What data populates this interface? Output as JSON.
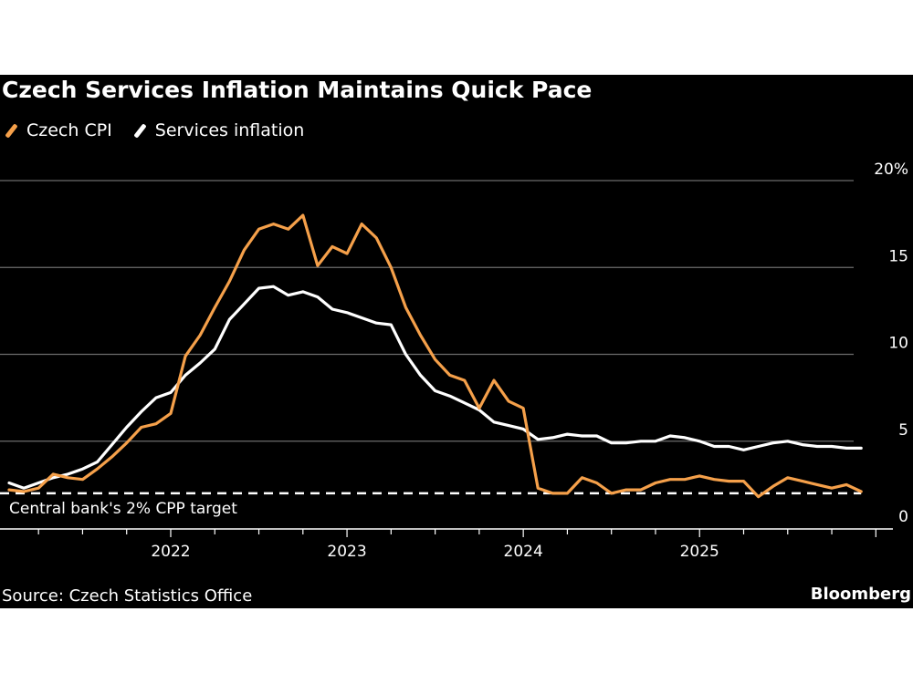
{
  "chart_data": {
    "type": "line",
    "title": "Czech Services Inflation Maintains Quick Pace",
    "xlabel": "",
    "ylabel": "",
    "y_unit": "%",
    "ylim": [
      0,
      20
    ],
    "yticks": [
      0,
      5,
      10,
      15,
      20
    ],
    "ytick_labels": [
      "0",
      "5",
      "10",
      "15",
      "20%"
    ],
    "xrange": [
      "2021-01",
      "2025-11"
    ],
    "xtick_labels": [
      "2022",
      "2023",
      "2024",
      "2025"
    ],
    "grid": true,
    "legend_position": "top-left",
    "x": [
      "2021-01",
      "2021-02",
      "2021-03",
      "2021-04",
      "2021-05",
      "2021-06",
      "2021-07",
      "2021-08",
      "2021-09",
      "2021-10",
      "2021-11",
      "2021-12",
      "2022-01",
      "2022-02",
      "2022-03",
      "2022-04",
      "2022-05",
      "2022-06",
      "2022-07",
      "2022-08",
      "2022-09",
      "2022-10",
      "2022-11",
      "2022-12",
      "2023-01",
      "2023-02",
      "2023-03",
      "2023-04",
      "2023-05",
      "2023-06",
      "2023-07",
      "2023-08",
      "2023-09",
      "2023-10",
      "2023-11",
      "2023-12",
      "2024-01",
      "2024-02",
      "2024-03",
      "2024-04",
      "2024-05",
      "2024-06",
      "2024-07",
      "2024-08",
      "2024-09",
      "2024-10",
      "2024-11",
      "2024-12",
      "2025-01",
      "2025-02",
      "2025-03",
      "2025-04",
      "2025-05",
      "2025-06",
      "2025-07",
      "2025-08",
      "2025-09",
      "2025-10",
      "2025-11"
    ],
    "series": [
      {
        "name": "Czech CPI",
        "color": "#f5a04a",
        "values": [
          2.2,
          2.1,
          2.3,
          3.1,
          2.9,
          2.8,
          3.4,
          4.1,
          4.9,
          5.8,
          6.0,
          6.6,
          9.9,
          11.1,
          12.7,
          14.2,
          16.0,
          17.2,
          17.5,
          17.2,
          18.0,
          15.1,
          16.2,
          15.8,
          17.5,
          16.7,
          15.0,
          12.7,
          11.1,
          9.7,
          8.8,
          8.5,
          6.9,
          8.5,
          7.3,
          6.9,
          2.3,
          2.0,
          2.0,
          2.9,
          2.6,
          2.0,
          2.2,
          2.2,
          2.6,
          2.8,
          2.8,
          3.0,
          2.8,
          2.7,
          2.7,
          1.8,
          2.4,
          2.9,
          2.7,
          2.5,
          2.3,
          2.5,
          2.1
        ]
      },
      {
        "name": "Services inflation",
        "color": "#ffffff",
        "values": [
          2.6,
          2.3,
          2.6,
          2.9,
          3.1,
          3.4,
          3.8,
          4.8,
          5.8,
          6.7,
          7.5,
          7.8,
          8.8,
          9.5,
          10.3,
          12.0,
          12.9,
          13.8,
          13.9,
          13.4,
          13.6,
          13.3,
          12.6,
          12.4,
          12.1,
          11.8,
          11.7,
          10.0,
          8.8,
          7.9,
          7.6,
          7.2,
          6.8,
          6.1,
          5.9,
          5.7,
          5.1,
          5.2,
          5.4,
          5.3,
          5.3,
          4.9,
          4.9,
          5.0,
          5.0,
          5.3,
          5.2,
          5.0,
          4.7,
          4.7,
          4.5,
          4.7,
          4.9,
          5.0,
          4.8,
          4.7,
          4.7,
          4.6,
          4.6
        ]
      }
    ],
    "reference_line": {
      "value": 2,
      "label": "Central bank's 2% CPP target",
      "style": "dashed",
      "color": "#ffffff"
    },
    "source": "Source: Czech Statistics Office",
    "brand": "Bloomberg"
  }
}
